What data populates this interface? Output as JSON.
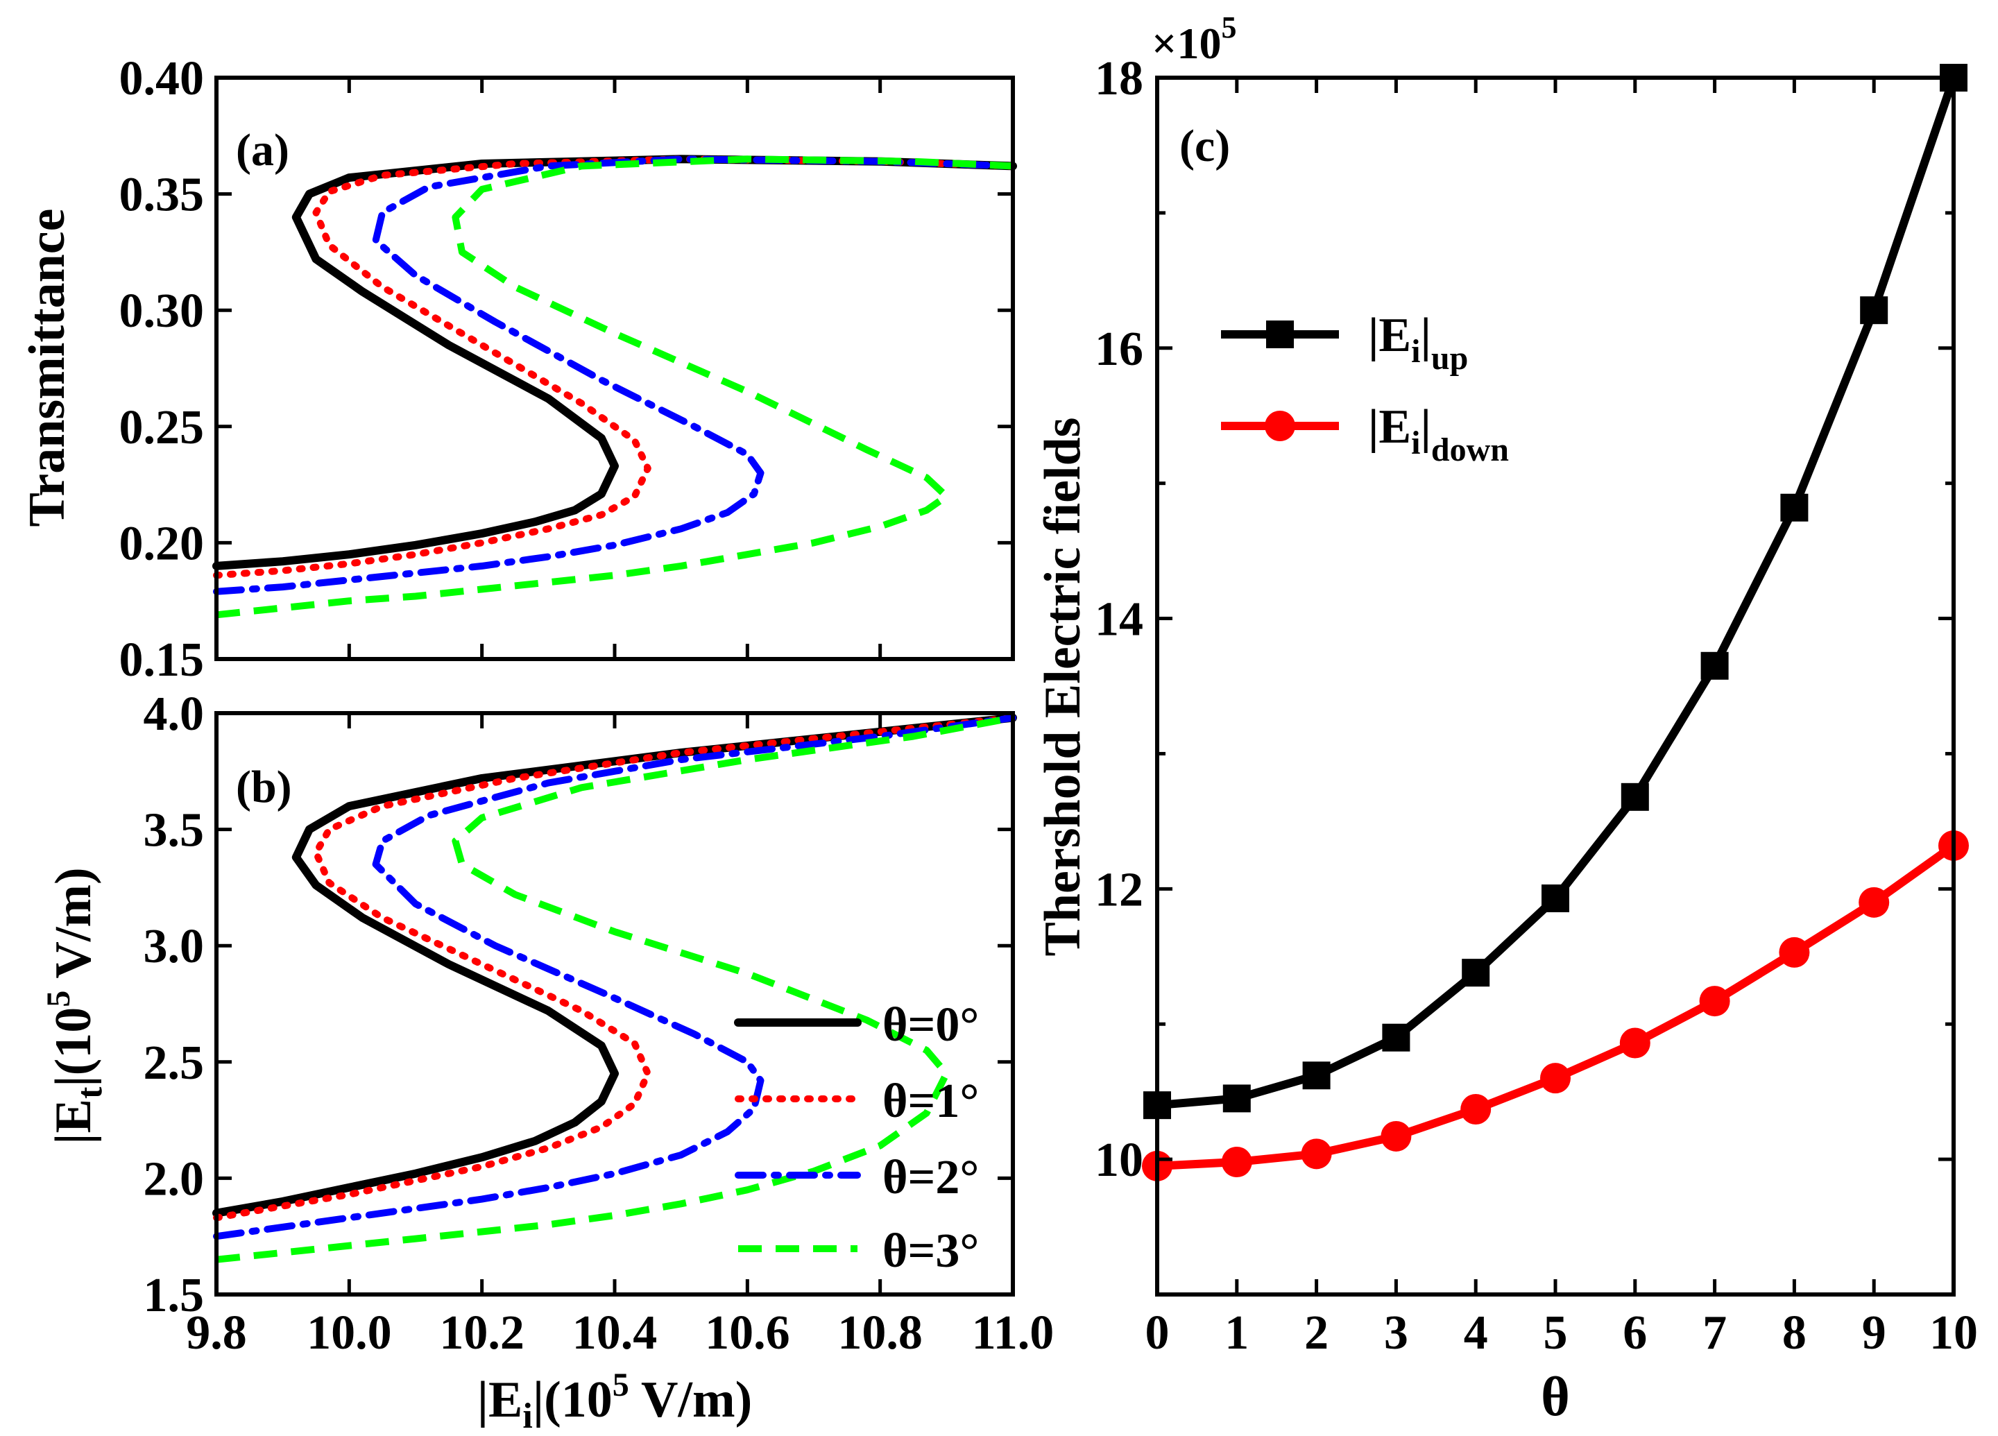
{
  "chart_data": [
    {
      "panel": "(a)",
      "type": "line",
      "xlim": [
        9.8,
        11.0
      ],
      "ylim": [
        0.15,
        0.4
      ],
      "x_ticks": [
        "9.8",
        "10.0",
        "10.2",
        "10.4",
        "10.6",
        "10.8",
        "11.0"
      ],
      "y_ticks": [
        "0.15",
        "0.20",
        "0.25",
        "0.30",
        "0.35",
        "0.40"
      ],
      "xlabel": "",
      "ylabel": "Transmittance",
      "series": [
        {
          "name": "θ=0°",
          "color": "#000000",
          "style": "solid",
          "points": [
            [
              9.8,
              0.19
            ],
            [
              9.9,
              0.192
            ],
            [
              10.0,
              0.195
            ],
            [
              10.1,
              0.199
            ],
            [
              10.2,
              0.204
            ],
            [
              10.28,
              0.209
            ],
            [
              10.34,
              0.214
            ],
            [
              10.38,
              0.221
            ],
            [
              10.4,
              0.233
            ],
            [
              10.38,
              0.245
            ],
            [
              10.3,
              0.262
            ],
            [
              10.15,
              0.285
            ],
            [
              10.02,
              0.308
            ],
            [
              9.95,
              0.322
            ],
            [
              9.92,
              0.34
            ],
            [
              9.94,
              0.35
            ],
            [
              10.0,
              0.357
            ],
            [
              10.2,
              0.363
            ],
            [
              10.5,
              0.365
            ],
            [
              10.8,
              0.364
            ],
            [
              11.0,
              0.362
            ]
          ]
        },
        {
          "name": "θ=1°",
          "color": "#ff0000",
          "style": "dotted",
          "points": [
            [
              9.8,
              0.186
            ],
            [
              9.9,
              0.188
            ],
            [
              10.0,
              0.191
            ],
            [
              10.1,
              0.195
            ],
            [
              10.2,
              0.2
            ],
            [
              10.3,
              0.206
            ],
            [
              10.38,
              0.212
            ],
            [
              10.43,
              0.22
            ],
            [
              10.45,
              0.232
            ],
            [
              10.43,
              0.244
            ],
            [
              10.35,
              0.26
            ],
            [
              10.2,
              0.285
            ],
            [
              10.05,
              0.31
            ],
            [
              9.97,
              0.328
            ],
            [
              9.95,
              0.342
            ],
            [
              9.97,
              0.351
            ],
            [
              10.05,
              0.358
            ],
            [
              10.25,
              0.363
            ],
            [
              10.5,
              0.365
            ],
            [
              10.8,
              0.364
            ],
            [
              11.0,
              0.362
            ]
          ]
        },
        {
          "name": "θ=2°",
          "color": "#0000ff",
          "style": "dashdot",
          "points": [
            [
              9.8,
              0.179
            ],
            [
              9.9,
              0.181
            ],
            [
              10.0,
              0.184
            ],
            [
              10.1,
              0.187
            ],
            [
              10.2,
              0.19
            ],
            [
              10.3,
              0.194
            ],
            [
              10.4,
              0.199
            ],
            [
              10.5,
              0.206
            ],
            [
              10.57,
              0.213
            ],
            [
              10.61,
              0.221
            ],
            [
              10.62,
              0.23
            ],
            [
              10.6,
              0.238
            ],
            [
              10.52,
              0.25
            ],
            [
              10.38,
              0.27
            ],
            [
              10.22,
              0.295
            ],
            [
              10.1,
              0.315
            ],
            [
              10.04,
              0.33
            ],
            [
              10.05,
              0.342
            ],
            [
              10.12,
              0.353
            ],
            [
              10.3,
              0.362
            ],
            [
              10.5,
              0.365
            ],
            [
              10.8,
              0.364
            ],
            [
              11.0,
              0.362
            ]
          ]
        },
        {
          "name": "θ=3°",
          "color": "#00ff00",
          "style": "dashed",
          "points": [
            [
              9.8,
              0.169
            ],
            [
              9.9,
              0.172
            ],
            [
              10.0,
              0.175
            ],
            [
              10.1,
              0.177
            ],
            [
              10.2,
              0.18
            ],
            [
              10.3,
              0.183
            ],
            [
              10.4,
              0.186
            ],
            [
              10.5,
              0.19
            ],
            [
              10.6,
              0.195
            ],
            [
              10.7,
              0.2
            ],
            [
              10.8,
              0.207
            ],
            [
              10.87,
              0.214
            ],
            [
              10.9,
              0.22
            ],
            [
              10.87,
              0.228
            ],
            [
              10.78,
              0.24
            ],
            [
              10.6,
              0.265
            ],
            [
              10.4,
              0.29
            ],
            [
              10.25,
              0.31
            ],
            [
              10.17,
              0.325
            ],
            [
              10.16,
              0.34
            ],
            [
              10.2,
              0.352
            ],
            [
              10.35,
              0.362
            ],
            [
              10.6,
              0.365
            ],
            [
              10.85,
              0.364
            ],
            [
              11.0,
              0.362
            ]
          ]
        }
      ]
    },
    {
      "panel": "(b)",
      "type": "line",
      "xlim": [
        9.8,
        11.0
      ],
      "ylim": [
        1.5,
        4.0
      ],
      "x_ticks": [
        "9.8",
        "10.0",
        "10.2",
        "10.4",
        "10.6",
        "10.8",
        "11.0"
      ],
      "y_ticks": [
        "1.5",
        "2.0",
        "2.5",
        "3.0",
        "3.5",
        "4.0"
      ],
      "xlabel_left": "|E",
      "xlabel_sub": "i",
      "xlabel_right": "|(10",
      "xlabel_exp": "5",
      "xlabel_unit": " V/m)",
      "ylabel_left": "|E",
      "ylabel_sub": "t",
      "ylabel_right": "|(10",
      "ylabel_exp": "5",
      "ylabel_unit": " V/m)",
      "legend": [
        "θ=0°",
        "θ=1°",
        "θ=2°",
        "θ=3°"
      ],
      "series": [
        {
          "name": "θ=0°",
          "color": "#000000",
          "style": "solid",
          "points": [
            [
              9.8,
              1.85
            ],
            [
              9.9,
              1.9
            ],
            [
              10.0,
              1.96
            ],
            [
              10.1,
              2.02
            ],
            [
              10.2,
              2.09
            ],
            [
              10.28,
              2.16
            ],
            [
              10.34,
              2.24
            ],
            [
              10.38,
              2.33
            ],
            [
              10.4,
              2.45
            ],
            [
              10.38,
              2.57
            ],
            [
              10.3,
              2.72
            ],
            [
              10.15,
              2.92
            ],
            [
              10.02,
              3.12
            ],
            [
              9.95,
              3.26
            ],
            [
              9.92,
              3.38
            ],
            [
              9.94,
              3.5
            ],
            [
              10.0,
              3.6
            ],
            [
              10.2,
              3.72
            ],
            [
              10.5,
              3.83
            ],
            [
              10.8,
              3.92
            ],
            [
              11.0,
              3.98
            ]
          ]
        },
        {
          "name": "θ=1°",
          "color": "#ff0000",
          "style": "dotted",
          "points": [
            [
              9.8,
              1.83
            ],
            [
              9.9,
              1.88
            ],
            [
              10.0,
              1.93
            ],
            [
              10.1,
              1.99
            ],
            [
              10.2,
              2.05
            ],
            [
              10.3,
              2.13
            ],
            [
              10.38,
              2.22
            ],
            [
              10.43,
              2.32
            ],
            [
              10.45,
              2.45
            ],
            [
              10.43,
              2.58
            ],
            [
              10.35,
              2.72
            ],
            [
              10.2,
              2.92
            ],
            [
              10.05,
              3.12
            ],
            [
              9.97,
              3.27
            ],
            [
              9.95,
              3.4
            ],
            [
              9.97,
              3.5
            ],
            [
              10.05,
              3.6
            ],
            [
              10.25,
              3.72
            ],
            [
              10.5,
              3.83
            ],
            [
              10.8,
              3.92
            ],
            [
              11.0,
              3.98
            ]
          ]
        },
        {
          "name": "θ=2°",
          "color": "#0000ff",
          "style": "dashdot",
          "points": [
            [
              9.8,
              1.75
            ],
            [
              9.9,
              1.79
            ],
            [
              10.0,
              1.83
            ],
            [
              10.1,
              1.87
            ],
            [
              10.2,
              1.91
            ],
            [
              10.3,
              1.96
            ],
            [
              10.4,
              2.02
            ],
            [
              10.5,
              2.1
            ],
            [
              10.57,
              2.2
            ],
            [
              10.61,
              2.3
            ],
            [
              10.62,
              2.42
            ],
            [
              10.6,
              2.5
            ],
            [
              10.52,
              2.62
            ],
            [
              10.38,
              2.8
            ],
            [
              10.22,
              3.0
            ],
            [
              10.1,
              3.18
            ],
            [
              10.04,
              3.35
            ],
            [
              10.05,
              3.45
            ],
            [
              10.12,
              3.56
            ],
            [
              10.3,
              3.7
            ],
            [
              10.5,
              3.8
            ],
            [
              10.8,
              3.9
            ],
            [
              11.0,
              3.98
            ]
          ]
        },
        {
          "name": "θ=3°",
          "color": "#00ff00",
          "style": "dashed",
          "points": [
            [
              9.8,
              1.65
            ],
            [
              9.9,
              1.68
            ],
            [
              10.0,
              1.71
            ],
            [
              10.1,
              1.74
            ],
            [
              10.2,
              1.77
            ],
            [
              10.3,
              1.8
            ],
            [
              10.4,
              1.84
            ],
            [
              10.5,
              1.89
            ],
            [
              10.6,
              1.95
            ],
            [
              10.7,
              2.03
            ],
            [
              10.8,
              2.14
            ],
            [
              10.87,
              2.28
            ],
            [
              10.9,
              2.45
            ],
            [
              10.87,
              2.55
            ],
            [
              10.78,
              2.68
            ],
            [
              10.6,
              2.88
            ],
            [
              10.4,
              3.06
            ],
            [
              10.25,
              3.22
            ],
            [
              10.17,
              3.35
            ],
            [
              10.16,
              3.45
            ],
            [
              10.2,
              3.55
            ],
            [
              10.35,
              3.68
            ],
            [
              10.6,
              3.8
            ],
            [
              10.85,
              3.9
            ],
            [
              11.0,
              3.98
            ]
          ]
        }
      ]
    },
    {
      "panel": "(c)",
      "type": "line",
      "xlim": [
        0,
        10
      ],
      "ylim": [
        9,
        18
      ],
      "x_ticks": [
        "0",
        "1",
        "2",
        "3",
        "4",
        "5",
        "6",
        "7",
        "8",
        "9",
        "10"
      ],
      "y_ticks": [
        "10",
        "12",
        "14",
        "16",
        "18"
      ],
      "y_tick_values": [
        10,
        12,
        14,
        16,
        18
      ],
      "multiplier": "×10",
      "multiplier_exp": "5",
      "xlabel": "θ",
      "ylabel": "Thershold Electric fields",
      "series": [
        {
          "name": "|E_i|_up",
          "legend_main": "|E",
          "legend_sub": "i",
          "legend_tail": "|",
          "legend_subscript2": "up",
          "color": "#000000",
          "marker": "square",
          "x": [
            0,
            1,
            2,
            3,
            4,
            5,
            6,
            7,
            8,
            9,
            10
          ],
          "y": [
            10.4,
            10.45,
            10.62,
            10.9,
            11.38,
            11.93,
            12.68,
            13.65,
            14.82,
            16.28,
            18.0
          ]
        },
        {
          "name": "|E_i|_down",
          "legend_main": "|E",
          "legend_sub": "i",
          "legend_tail": "|",
          "legend_subscript2": "down",
          "color": "#ff0000",
          "marker": "circle",
          "x": [
            0,
            1,
            2,
            3,
            4,
            5,
            6,
            7,
            8,
            9,
            10
          ],
          "y": [
            9.95,
            9.98,
            10.04,
            10.17,
            10.37,
            10.6,
            10.86,
            11.17,
            11.53,
            11.9,
            12.32
          ]
        }
      ]
    }
  ]
}
